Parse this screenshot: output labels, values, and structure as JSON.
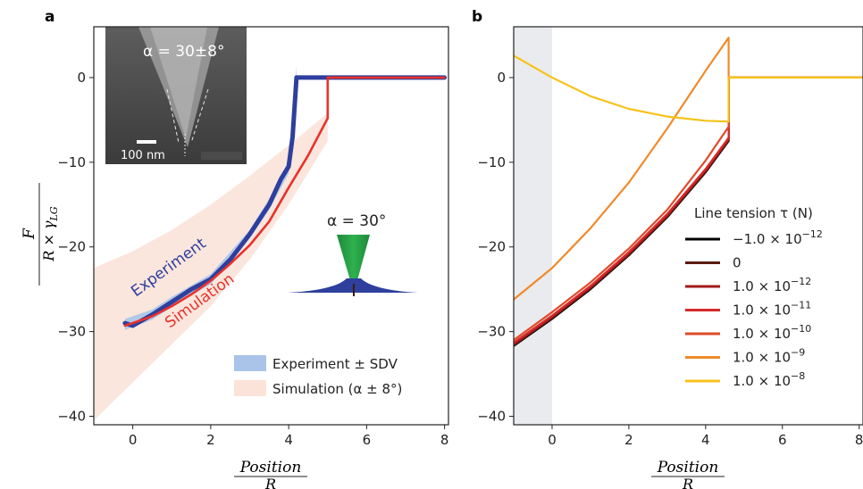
{
  "panel_a": {
    "letter": "a",
    "ylabel_num": "F",
    "ylabel_den_prefix": "R × γ",
    "ylabel_den_sub": "LG",
    "xlabel_num": "Position",
    "xlabel_den": "R",
    "inset_alpha_text": "α = 30±8°",
    "inset_scale_text": "100 nm",
    "tip_label": "α = 30°",
    "experiment_label": "Experiment",
    "simulation_label": "Simulation",
    "legend": [
      "Experiment ± SDV",
      "Simulation (α ± 8°)"
    ]
  },
  "panel_b": {
    "letter": "b",
    "xlabel_num": "Position",
    "xlabel_den": "R",
    "legend_title": "Line tension τ (N)",
    "legend_entries": [
      {
        "base": "−1.0 × 10",
        "exp": "−12",
        "color": "#000000"
      },
      {
        "base": "0",
        "exp": "",
        "color": "#5a1a10"
      },
      {
        "base": "1.0 × 10",
        "exp": "−12",
        "color": "#a31a1a"
      },
      {
        "base": "1.0 × 10",
        "exp": "−11",
        "color": "#d62a2a"
      },
      {
        "base": "1.0 × 10",
        "exp": "−10",
        "color": "#e04a2a"
      },
      {
        "base": "1.0 × 10",
        "exp": "−9",
        "color": "#ef8a2a"
      },
      {
        "base": "1.0 × 10",
        "exp": "−8",
        "color": "#f7c21a"
      }
    ]
  },
  "chart_data": [
    {
      "type": "line",
      "panel": "a",
      "xlim": [
        -1,
        8.1
      ],
      "ylim": [
        -41,
        6
      ],
      "xticks": [
        0,
        2,
        4,
        6,
        8
      ],
      "yticks": [
        0,
        -10,
        -20,
        -30,
        -40
      ],
      "series": [
        {
          "name": "Experiment",
          "color": "#2e3f9e",
          "x": [
            -0.2,
            0.0,
            0.5,
            1.0,
            1.5,
            2.0,
            2.5,
            3.0,
            3.5,
            3.8,
            4.0,
            4.1,
            4.2,
            4.3,
            4.5,
            5.0,
            6.0,
            7.0,
            8.0
          ],
          "y": [
            -29.0,
            -29.3,
            -28.0,
            -26.5,
            -25.0,
            -23.8,
            -21.5,
            -18.5,
            -15.0,
            -12.0,
            -10.5,
            -7.0,
            0.0,
            0.0,
            0.0,
            0.0,
            0.0,
            0.0,
            0.0
          ]
        },
        {
          "name": "Simulation",
          "color": "#e8322a",
          "x": [
            -0.2,
            0.5,
            1.0,
            1.5,
            2.0,
            2.5,
            3.0,
            3.5,
            4.0,
            4.5,
            5.0,
            5.0,
            6.0,
            7.0,
            8.0
          ],
          "y": [
            -29.3,
            -28.2,
            -27.0,
            -25.6,
            -24.0,
            -22.0,
            -19.8,
            -17.0,
            -13.0,
            -9.2,
            -4.8,
            0.0,
            0.0,
            0.0,
            0.0
          ]
        }
      ],
      "bands": [
        {
          "name": "Experiment ± SDV",
          "color": "#a9c4e8",
          "x": [
            -0.2,
            0.5,
            1.0,
            2.0,
            3.0,
            3.5,
            4.0,
            4.1,
            4.2
          ],
          "upper": [
            -28.5,
            -27.4,
            -25.9,
            -23.2,
            -18.0,
            -14.3,
            -9.8,
            -6.0,
            1.5
          ],
          "lower": [
            -29.8,
            -28.6,
            -27.1,
            -24.4,
            -19.0,
            -15.6,
            -11.3,
            -8.5,
            -1.0
          ]
        },
        {
          "name": "Simulation (α ± 8°)",
          "color": "#fbe3d9",
          "x": [
            -1.0,
            0.0,
            1.0,
            2.0,
            3.0,
            4.0,
            5.0
          ],
          "upper": [
            -22.5,
            -20.5,
            -18.0,
            -15.0,
            -11.6,
            -8.0,
            -4.2
          ],
          "lower": [
            -40.5,
            -36.0,
            -31.5,
            -27.0,
            -21.5,
            -15.0,
            -7.5
          ]
        }
      ]
    },
    {
      "type": "line",
      "panel": "b",
      "xlim": [
        -1,
        8.1
      ],
      "ylim": [
        -41,
        6
      ],
      "xticks": [
        0,
        2,
        4,
        6,
        8
      ],
      "yticks": [
        0,
        -10,
        -20,
        -30,
        -40
      ],
      "shaded_region_x": [
        -1,
        0
      ],
      "series": [
        {
          "name": "−1.0 × 10^−12",
          "color": "#000000",
          "x": [
            -1.0,
            0.0,
            1.0,
            2.0,
            3.0,
            4.0,
            4.6,
            4.6,
            8.1
          ],
          "y": [
            -31.7,
            -28.5,
            -25.0,
            -21.0,
            -16.5,
            -11.2,
            -7.5,
            0.0,
            0.0
          ]
        },
        {
          "name": "0",
          "color": "#5a1a10",
          "x": [
            -1.0,
            0.0,
            1.0,
            2.0,
            3.0,
            4.0,
            4.6,
            4.6,
            8.1
          ],
          "y": [
            -31.6,
            -28.4,
            -24.9,
            -20.9,
            -16.4,
            -11.1,
            -7.4,
            0.0,
            0.0
          ]
        },
        {
          "name": "1.0 × 10^−12",
          "color": "#a31a1a",
          "x": [
            -1.0,
            0.0,
            1.0,
            2.0,
            3.0,
            4.0,
            4.6,
            4.6,
            8.1
          ],
          "y": [
            -31.5,
            -28.3,
            -24.8,
            -20.8,
            -16.3,
            -11.0,
            -7.3,
            0.0,
            0.0
          ]
        },
        {
          "name": "1.0 × 10^−11",
          "color": "#d62a2a",
          "x": [
            -1.0,
            0.0,
            1.0,
            2.0,
            3.0,
            4.0,
            4.6,
            4.6,
            8.1
          ],
          "y": [
            -31.3,
            -28.1,
            -24.6,
            -20.6,
            -16.1,
            -10.8,
            -7.1,
            0.0,
            0.0
          ]
        },
        {
          "name": "1.0 × 10^−10",
          "color": "#e04a2a",
          "x": [
            -1.0,
            0.0,
            1.0,
            2.0,
            3.0,
            4.0,
            4.6,
            4.6,
            8.1
          ],
          "y": [
            -31.0,
            -27.7,
            -24.2,
            -20.2,
            -15.6,
            -9.8,
            -5.8,
            0.0,
            0.0
          ]
        },
        {
          "name": "1.0 × 10^−9",
          "color": "#ef8a2a",
          "x": [
            -1.0,
            0.0,
            1.0,
            2.0,
            3.0,
            4.0,
            4.6,
            4.6,
            8.1
          ],
          "y": [
            -26.2,
            -22.5,
            -17.8,
            -12.4,
            -6.0,
            0.8,
            4.7,
            0.0,
            0.0
          ]
        },
        {
          "name": "1.0 × 10^−8",
          "color": "#f7c21a",
          "x": [
            -1.0,
            0.0,
            1.0,
            2.0,
            3.0,
            4.0,
            4.6,
            4.6,
            8.1
          ],
          "y": [
            2.6,
            0.0,
            -2.2,
            -3.7,
            -4.6,
            -5.1,
            -5.2,
            0.0,
            0.0
          ]
        }
      ]
    }
  ]
}
